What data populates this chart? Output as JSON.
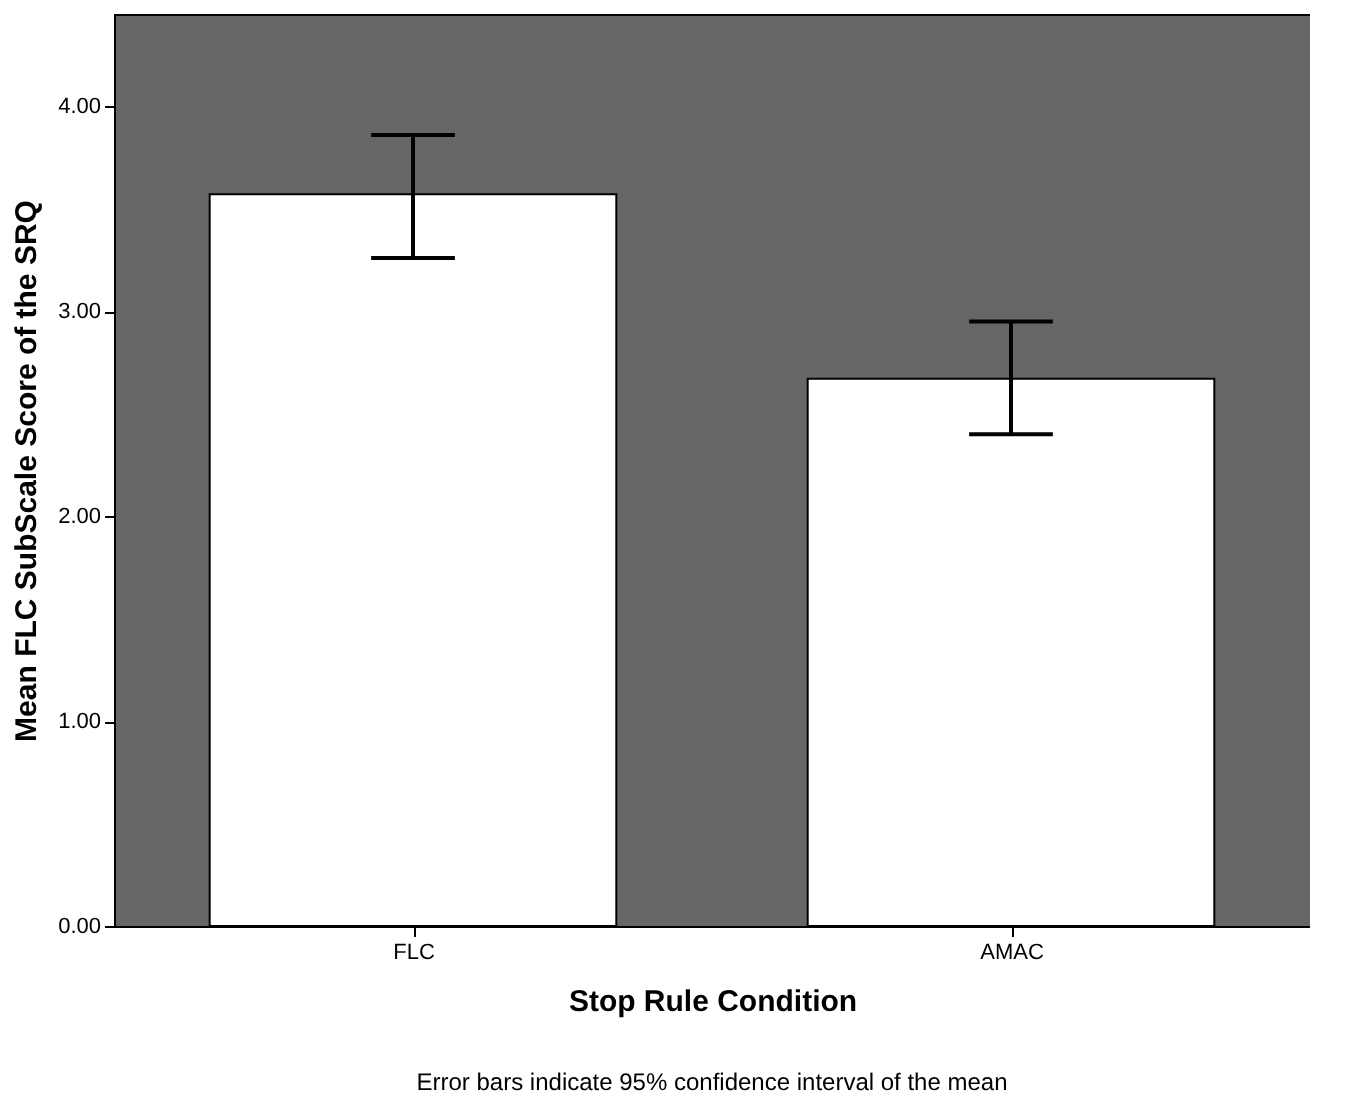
{
  "chart_data": {
    "type": "bar",
    "xlabel": "Stop Rule Condition",
    "ylabel": "Mean FLC SubScale Score of the SRQ",
    "categories": [
      "FLC",
      "AMAC"
    ],
    "values": [
      3.57,
      2.67
    ],
    "color": "#ffffff",
    "errors": [
      [
        3.26,
        3.86
      ],
      [
        2.4,
        2.95
      ]
    ],
    "ylim": [
      0,
      4.45
    ],
    "yticks": [
      {
        "value": 0,
        "label": "0.00"
      },
      {
        "value": 1,
        "label": "1.00"
      },
      {
        "value": 2,
        "label": "2.00"
      },
      {
        "value": 3,
        "label": "3.00"
      },
      {
        "value": 4,
        "label": "4.00"
      }
    ],
    "grid": false,
    "annotations": [
      "Error bars indicate 95% confidence interval of the mean"
    ]
  }
}
